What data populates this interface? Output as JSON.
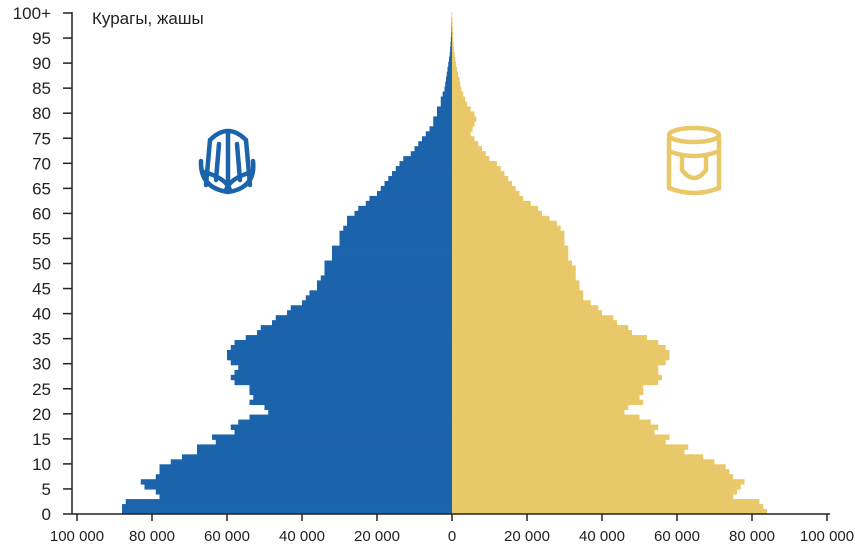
{
  "chart_data": {
    "type": "bar",
    "orientation": "horizontal-population-pyramid",
    "ylabel": "Курагы, жашы",
    "y_tick_labels": [
      "0",
      "5",
      "10",
      "15",
      "20",
      "25",
      "30",
      "35",
      "40",
      "45",
      "50",
      "55",
      "60",
      "65",
      "70",
      "75",
      "80",
      "85",
      "90",
      "95",
      "100+"
    ],
    "x_tick_labels": [
      "100 000",
      "80 000",
      "60 000",
      "40 000",
      "20 000",
      "0",
      "20 000",
      "40 000",
      "60 000",
      "80 000",
      "100 000"
    ],
    "xlim": [
      -100000,
      100000
    ],
    "ylim": [
      0,
      100
    ],
    "grid": false,
    "colors": {
      "male": "#1b63ab",
      "female": "#e8c868",
      "axis": "#222222"
    },
    "icons": {
      "male": "male-kalpak-hat-icon",
      "female": "female-elechek-headdress-icon"
    },
    "ages": [
      0,
      1,
      2,
      3,
      4,
      5,
      6,
      7,
      8,
      9,
      10,
      11,
      12,
      13,
      14,
      15,
      16,
      17,
      18,
      19,
      20,
      21,
      22,
      23,
      24,
      25,
      26,
      27,
      28,
      29,
      30,
      31,
      32,
      33,
      34,
      35,
      36,
      37,
      38,
      39,
      40,
      41,
      42,
      43,
      44,
      45,
      46,
      47,
      48,
      49,
      50,
      51,
      52,
      53,
      54,
      55,
      56,
      57,
      58,
      59,
      60,
      61,
      62,
      63,
      64,
      65,
      66,
      67,
      68,
      69,
      70,
      71,
      72,
      73,
      74,
      75,
      76,
      77,
      78,
      79,
      80,
      81,
      82,
      83,
      84,
      85,
      86,
      87,
      88,
      89,
      90,
      91,
      92,
      93,
      94,
      95,
      96,
      97,
      98,
      99,
      100
    ],
    "series": [
      {
        "key": "male",
        "values": [
          88000,
          88000,
          87000,
          78000,
          79000,
          82000,
          83000,
          79000,
          78000,
          78000,
          75000,
          72000,
          68000,
          68000,
          63000,
          64000,
          58000,
          59000,
          57000,
          54000,
          49000,
          50000,
          54000,
          53000,
          54000,
          54000,
          58000,
          59000,
          58000,
          57000,
          59000,
          60000,
          60000,
          59000,
          58000,
          55000,
          52000,
          51000,
          48000,
          47000,
          44000,
          43000,
          40000,
          39000,
          38000,
          36000,
          36000,
          35000,
          34000,
          34000,
          34000,
          32000,
          32000,
          32000,
          30000,
          30000,
          30000,
          29000,
          28000,
          28000,
          26000,
          25000,
          23000,
          22000,
          20000,
          19000,
          18000,
          17000,
          16000,
          15000,
          14000,
          13000,
          11000,
          10000,
          9000,
          8000,
          7000,
          6000,
          5000,
          5000,
          4000,
          4000,
          3000,
          3000,
          2500,
          2000,
          1800,
          1600,
          1400,
          1200,
          1000,
          800,
          600,
          500,
          400,
          300,
          200,
          150,
          100,
          80,
          50
        ]
      },
      {
        "key": "female",
        "values": [
          84000,
          83000,
          82000,
          75000,
          76000,
          77000,
          78000,
          75000,
          74000,
          73000,
          70000,
          67000,
          62000,
          63000,
          57000,
          58000,
          54000,
          55000,
          53000,
          50000,
          46000,
          47000,
          51000,
          50000,
          51000,
          51000,
          55000,
          56000,
          55000,
          55000,
          57000,
          58000,
          58000,
          57000,
          55000,
          52000,
          48000,
          47000,
          44000,
          43000,
          40000,
          39000,
          37000,
          35000,
          35000,
          34000,
          34000,
          33000,
          33000,
          33000,
          32000,
          31000,
          31000,
          31000,
          30000,
          30000,
          30000,
          29000,
          28000,
          26000,
          24000,
          23000,
          21000,
          19000,
          18000,
          17000,
          16000,
          15000,
          14000,
          13000,
          12000,
          10000,
          9000,
          8000,
          7000,
          6000,
          5000,
          5500,
          6000,
          6500,
          6000,
          5000,
          4000,
          3500,
          3000,
          2500,
          2200,
          2000,
          1600,
          1300,
          1100,
          900,
          700,
          500,
          400,
          300,
          250,
          200,
          150,
          100,
          80
        ]
      }
    ]
  }
}
